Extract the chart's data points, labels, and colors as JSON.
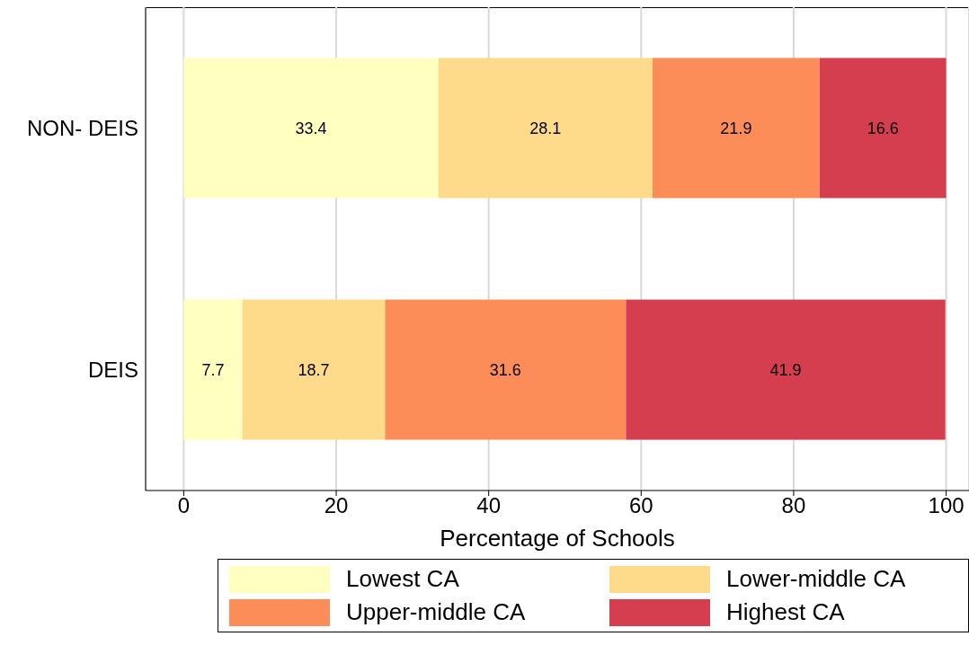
{
  "chart_data": {
    "type": "bar",
    "orientation": "horizontal",
    "stacked": true,
    "xlabel": "Percentage of Schools",
    "categories": [
      "NON- DEIS",
      "DEIS"
    ],
    "series": [
      {
        "name": "Lowest CA",
        "color": "#ffffc0",
        "values": [
          33.4,
          7.7
        ]
      },
      {
        "name": "Lower-middle CA",
        "color": "#fedb8a",
        "values": [
          28.1,
          18.7
        ]
      },
      {
        "name": "Upper-middle CA",
        "color": "#fc8d59",
        "values": [
          21.9,
          31.6
        ]
      },
      {
        "name": "Highest CA",
        "color": "#d53e4f",
        "values": [
          16.6,
          41.9
        ]
      }
    ],
    "xlim": [
      -5,
      103
    ],
    "xticks": [
      0,
      20,
      40,
      60,
      80,
      100
    ],
    "grid": "x",
    "legend": "bottom",
    "data_labels": true
  }
}
